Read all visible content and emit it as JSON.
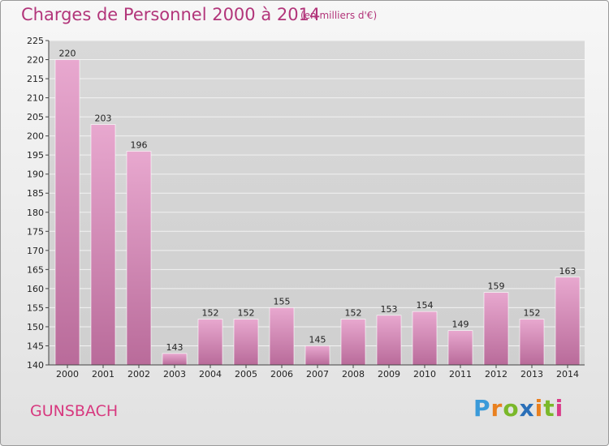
{
  "header": {
    "title": "Charges de Personnel 2000 à 2014",
    "subtitle": "(en milliers d'€)"
  },
  "footer": {
    "place": "GUNSBACH",
    "logo": "Proxiti"
  },
  "colors": {
    "title": "#b2357a",
    "bar_top": "#e8a8cf",
    "bar_bottom": "#b96b9a",
    "logo_letters": [
      "#3a9ad9",
      "#e9801f",
      "#7ab82a",
      "#2a6fb8",
      "#e9801f",
      "#7ab82a",
      "#d93c8a"
    ]
  },
  "chart_data": {
    "type": "bar",
    "categories": [
      "2000",
      "2001",
      "2002",
      "2003",
      "2004",
      "2005",
      "2006",
      "2007",
      "2008",
      "2009",
      "2010",
      "2011",
      "2012",
      "2013",
      "2014"
    ],
    "values": [
      220,
      203,
      196,
      143,
      152,
      152,
      155,
      145,
      152,
      153,
      154,
      149,
      159,
      152,
      163
    ],
    "title": "Charges de Personnel 2000 à 2014",
    "ylim": [
      140,
      225
    ],
    "yticks": [
      140,
      145,
      150,
      155,
      160,
      165,
      170,
      175,
      180,
      185,
      190,
      195,
      200,
      205,
      210,
      215,
      220,
      225
    ],
    "grid": true
  }
}
